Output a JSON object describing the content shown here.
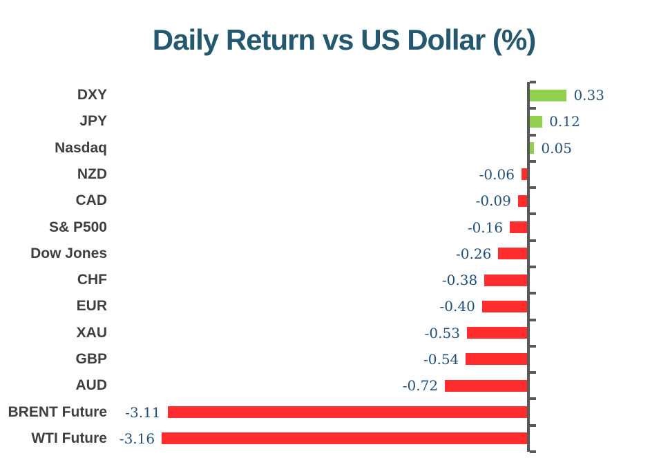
{
  "title": "Daily Return vs US Dollar (%)",
  "colors": {
    "title": "#24586E",
    "positive_bar": "#92D050",
    "negative_bar": "#FF2D2D",
    "value_label": "#1F4E79",
    "category_label": "#3F3F3F",
    "axis": "#595959",
    "background": "#FFFFFF"
  },
  "chart_data": {
    "type": "bar",
    "orientation": "horizontal",
    "title": "Daily Return vs US Dollar (%)",
    "xlabel": "",
    "ylabel": "",
    "grid": false,
    "legend": false,
    "value_axis_range": [
      -3.5,
      0.5
    ],
    "categories": [
      "DXY",
      "JPY",
      "Nasdaq",
      "NZD",
      "CAD",
      "S& P500",
      "Dow Jones",
      "CHF",
      "EUR",
      "XAU",
      "GBP",
      "AUD",
      "BRENT Future",
      "WTI Future"
    ],
    "values": [
      0.33,
      0.12,
      0.05,
      -0.06,
      -0.09,
      -0.16,
      -0.26,
      -0.38,
      -0.4,
      -0.53,
      -0.54,
      -0.72,
      -3.11,
      -3.16
    ],
    "value_labels": [
      "0.33",
      "0.12",
      "0.05",
      "-0.06",
      "-0.09",
      "-0.16",
      "-0.26",
      "-0.38",
      "-0.40",
      "-0.53",
      "-0.54",
      "-0.72",
      "-3.11",
      "-3.16"
    ]
  }
}
